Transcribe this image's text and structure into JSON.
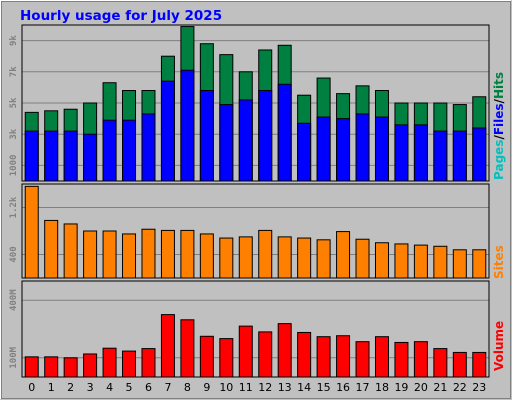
{
  "colors": {
    "background": "#c0c0c0",
    "plot": "#c0c0c0",
    "grid": "#808080",
    "title": "#0000ff",
    "hits": "#008040",
    "files": "#0000ff",
    "pages": "#00c0c0",
    "sites": "#ff8000",
    "volume": "#ff0000",
    "tick_text": "#808080",
    "x_text": "#000000"
  },
  "chart_data": [
    {
      "type": "bar",
      "title": "Hourly usage for July 2025",
      "categories": [
        "0",
        "1",
        "2",
        "3",
        "4",
        "5",
        "6",
        "7",
        "8",
        "9",
        "10",
        "11",
        "12",
        "13",
        "14",
        "15",
        "16",
        "17",
        "18",
        "19",
        "20",
        "21",
        "22",
        "23"
      ],
      "ylabel_parts": [
        "Pages",
        "/",
        "Files",
        "/",
        "Hits"
      ],
      "yticks": [
        "1000",
        "3k",
        "5k",
        "7k",
        "9k"
      ],
      "ylim": [
        0,
        10000
      ],
      "grid": true,
      "series": [
        {
          "name": "Hits",
          "values": [
            4400,
            4500,
            4600,
            5000,
            6300,
            5800,
            5800,
            8000,
            9900,
            8800,
            8100,
            7000,
            8400,
            8700,
            5500,
            6600,
            5600,
            6100,
            5800,
            5000,
            5000,
            5000,
            4900,
            5400
          ]
        },
        {
          "name": "Files",
          "values": [
            3200,
            3200,
            3200,
            3000,
            3900,
            3900,
            4300,
            6400,
            7100,
            5800,
            4900,
            5200,
            5800,
            6200,
            3700,
            4100,
            4000,
            4300,
            4100,
            3600,
            3600,
            3200,
            3200,
            3400
          ]
        },
        {
          "name": "Pages",
          "values": [
            0,
            0,
            0,
            0,
            0,
            0,
            0,
            0,
            0,
            0,
            0,
            0,
            0,
            0,
            0,
            0,
            0,
            0,
            0,
            0,
            0,
            0,
            0,
            0
          ]
        }
      ]
    },
    {
      "type": "bar",
      "ylabel": "Sites",
      "yticks": [
        "400",
        "1.2k"
      ],
      "ylim": [
        0,
        1600
      ],
      "grid": true,
      "series": [
        {
          "name": "Sites",
          "values": [
            1560,
            980,
            920,
            800,
            800,
            750,
            830,
            810,
            810,
            750,
            680,
            700,
            810,
            700,
            680,
            650,
            790,
            660,
            600,
            580,
            560,
            540,
            480,
            480
          ]
        }
      ]
    },
    {
      "type": "bar",
      "ylabel": "Volume",
      "yticks": [
        "100M",
        "400M"
      ],
      "ylim": [
        0,
        500
      ],
      "grid": true,
      "series": [
        {
          "name": "Volume",
          "values": [
            105,
            105,
            100,
            120,
            150,
            135,
            148,
            325,
            298,
            212,
            200,
            265,
            235,
            278,
            232,
            210,
            215,
            184,
            210,
            180,
            184,
            148,
            128,
            128
          ]
        }
      ]
    }
  ]
}
